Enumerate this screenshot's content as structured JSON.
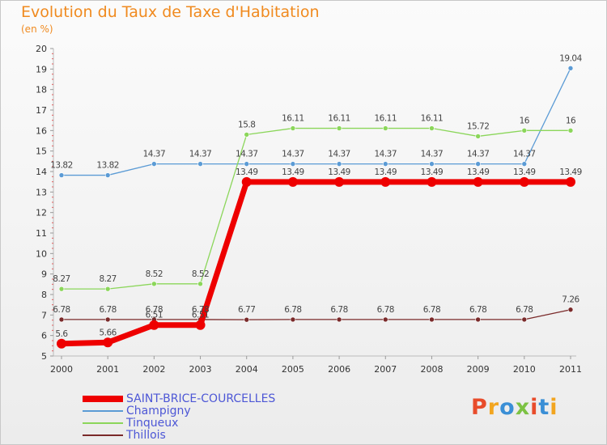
{
  "title": "Evolution du Taux de Taxe d'Habitation",
  "subtitle": "(en %)",
  "logo_text": "Proxiti",
  "logo_colors": [
    "#e84c2b",
    "#f2a51f",
    "#3a8fd6",
    "#7cc243",
    "#e84c2b",
    "#3a8fd6",
    "#f2a51f"
  ],
  "chart_data": {
    "type": "line",
    "title": "Evolution du Taux de Taxe d'Habitation",
    "ylabel": "(en %)",
    "xlabel": "",
    "ylim": [
      5,
      20
    ],
    "yticks": [
      "5",
      "6",
      "7",
      "8",
      "9",
      "10",
      "11",
      "12",
      "13",
      "14",
      "15",
      "16",
      "17",
      "18",
      "19",
      "20"
    ],
    "categories": [
      "2000",
      "2001",
      "2002",
      "2003",
      "2004",
      "2005",
      "2006",
      "2007",
      "2008",
      "2009",
      "2010",
      "2011"
    ],
    "series": [
      {
        "name": "SAINT-BRICE-COURCELLES",
        "color": "#ee0000",
        "values": [
          5.6,
          5.66,
          6.51,
          6.51,
          13.49,
          13.49,
          13.49,
          13.49,
          13.49,
          13.49,
          13.49,
          13.49
        ],
        "labels": [
          "5.6",
          "5.66",
          "6.51",
          "6.51",
          "13.49",
          "13.49",
          "13.49",
          "13.49",
          "13.49",
          "13.49",
          "13.49",
          "13.49"
        ]
      },
      {
        "name": "Champigny",
        "color": "#5b9bd5",
        "values": [
          13.82,
          13.82,
          14.37,
          14.37,
          14.37,
          14.37,
          14.37,
          14.37,
          14.37,
          14.37,
          14.37,
          19.04
        ],
        "labels": [
          "13.82",
          "13.82",
          "14.37",
          "14.37",
          "14.37",
          "14.37",
          "14.37",
          "14.37",
          "14.37",
          "14.37",
          "14.37",
          "19.04"
        ]
      },
      {
        "name": "Tinqueux",
        "color": "#8bd65a",
        "values": [
          8.27,
          8.27,
          8.52,
          8.52,
          15.8,
          16.11,
          16.11,
          16.11,
          16.11,
          15.72,
          16,
          16
        ],
        "labels": [
          "8.27",
          "8.27",
          "8.52",
          "8.52",
          "15.8",
          "16.11",
          "16.11",
          "16.11",
          "16.11",
          "15.72",
          "16",
          "16"
        ]
      },
      {
        "name": "Thillois",
        "color": "#7a2a2a",
        "values": [
          6.78,
          6.78,
          6.78,
          6.78,
          6.77,
          6.78,
          6.78,
          6.78,
          6.78,
          6.78,
          6.78,
          7.26
        ],
        "labels": [
          "6.78",
          "6.78",
          "6.78",
          "6.78",
          "6.77",
          "6.78",
          "6.78",
          "6.78",
          "6.78",
          "6.78",
          "6.78",
          "7.26"
        ]
      }
    ]
  }
}
